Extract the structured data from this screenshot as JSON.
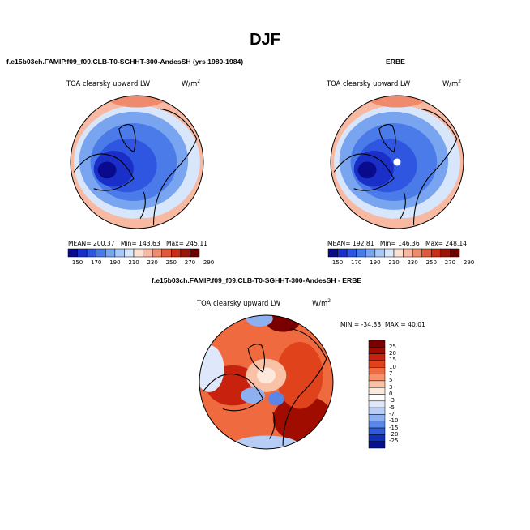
{
  "season": "DJF",
  "chart_data": [
    {
      "type": "heatmap",
      "projection": "north polar stereographic",
      "title": "f.e15b03ch.FAMIP.f09_f09.CLB-T0-SGHHT-300-AndesSH (yrs 1980-1984)",
      "variable": "TOA clearsky upward LW",
      "units": "W/m",
      "units_exp": "2",
      "stats": {
        "mean_label": "MEAN=",
        "mean": "200.37",
        "min_label": "Min=",
        "min": "143.63",
        "max_label": "Max=",
        "max": "245.11"
      },
      "colorbar": {
        "orientation": "horizontal",
        "ticks": [
          "150",
          "170",
          "190",
          "210",
          "230",
          "250",
          "270",
          "290"
        ]
      }
    },
    {
      "type": "heatmap",
      "projection": "north polar stereographic",
      "title": "ERBE",
      "variable": "TOA clearsky upward LW",
      "units": "W/m",
      "units_exp": "2",
      "stats": {
        "mean_label": "MEAN=",
        "mean": "192.81",
        "min_label": "Min=",
        "min": "146.36",
        "max_label": "Max=",
        "max": "248.14"
      },
      "colorbar": {
        "orientation": "horizontal",
        "ticks": [
          "150",
          "170",
          "190",
          "210",
          "230",
          "250",
          "270",
          "290"
        ]
      }
    },
    {
      "type": "heatmap",
      "projection": "north polar stereographic",
      "title": "f.e15b03ch.FAMIP.f09_f09.CLB-T0-SGHHT-300-AndesSH - ERBE",
      "variable": "TOA clearsky upward LW",
      "units": "W/m",
      "units_exp": "2",
      "stats": {
        "min_label": "MIN =",
        "min": "-34.33",
        "max_label": "MAX =",
        "max": "40.01"
      },
      "colorbar": {
        "orientation": "vertical",
        "ticks": [
          "25",
          "20",
          "15",
          "10",
          "7",
          "5",
          "3",
          "0",
          "-3",
          "-5",
          "-7",
          "-10",
          "-15",
          "-20",
          "-25"
        ]
      }
    }
  ],
  "colors": {
    "abs_scale": [
      "#0a0a8c",
      "#1a2fc8",
      "#2f56e0",
      "#4a7be8",
      "#78a4f0",
      "#a8c8f8",
      "#d8e6fb",
      "#fbe0d4",
      "#f8b9a2",
      "#f08a6c",
      "#e0583e",
      "#c82d18",
      "#9a1408",
      "#6a0000"
    ],
    "diff_scale": [
      "#7a0000",
      "#a00c00",
      "#c8220e",
      "#e0421c",
      "#ef6a3e",
      "#f6926c",
      "#f9c2a6",
      "#fde8dc",
      "#dfe8fb",
      "#b8cdf6",
      "#8fb0f0",
      "#5a86ea",
      "#2e5ad8",
      "#1030b8",
      "#05108a"
    ]
  }
}
